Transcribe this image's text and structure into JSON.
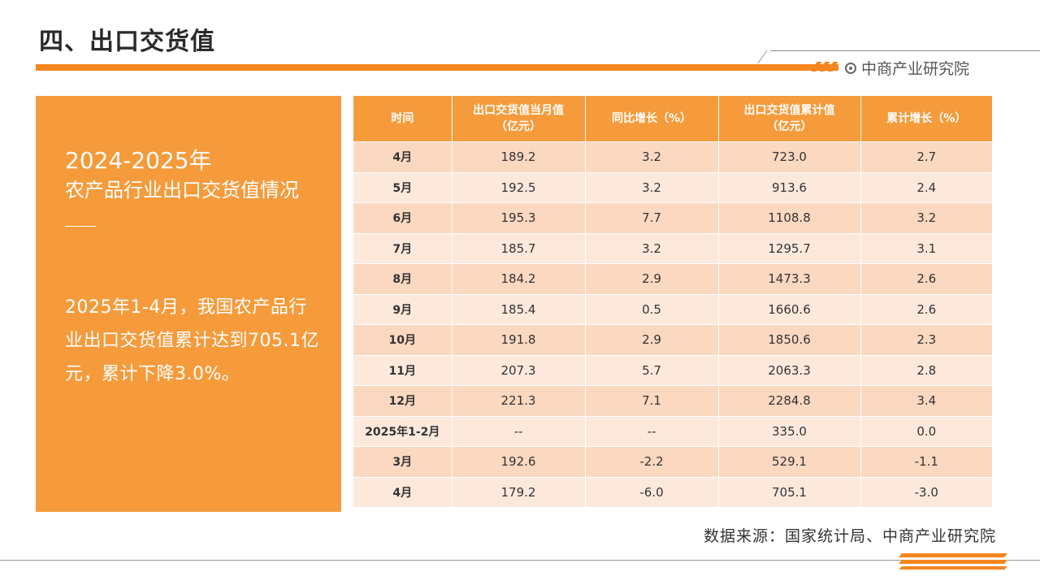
{
  "header": {
    "title": "四、出口交货值",
    "brand": "中商产业研究院"
  },
  "summary": {
    "year": "2024-2025年",
    "subtitle": "农产品行业出口交货值情况",
    "body": "2025年1-4月，我国农产品行业出口交货值累计达到705.1亿元，累计下降3.0%。"
  },
  "table": {
    "headers": [
      {
        "line1": "时间",
        "line2": ""
      },
      {
        "line1": "出口交货值当月值",
        "line2": "（亿元）"
      },
      {
        "line1": "同比增长（%）",
        "line2": ""
      },
      {
        "line1": "出口交货值累计值",
        "line2": "（亿元）"
      },
      {
        "line1": "累计增长（%）",
        "line2": ""
      }
    ],
    "rows": [
      [
        "4月",
        "189.2",
        "3.2",
        "723.0",
        "2.7"
      ],
      [
        "5月",
        "192.5",
        "3.2",
        "913.6",
        "2.4"
      ],
      [
        "6月",
        "195.3",
        "7.7",
        "1108.8",
        "3.2"
      ],
      [
        "7月",
        "185.7",
        "3.2",
        "1295.7",
        "3.1"
      ],
      [
        "8月",
        "184.2",
        "2.9",
        "1473.3",
        "2.6"
      ],
      [
        "9月",
        "185.4",
        "0.5",
        "1660.6",
        "2.6"
      ],
      [
        "10月",
        "191.8",
        "2.9",
        "1850.6",
        "2.3"
      ],
      [
        "11月",
        "207.3",
        "5.7",
        "2063.3",
        "2.8"
      ],
      [
        "12月",
        "221.3",
        "7.1",
        "2284.8",
        "3.4"
      ],
      [
        "2025年1-2月",
        "--",
        "--",
        "335.0",
        "0.0"
      ],
      [
        "3月",
        "192.6",
        "-2.2",
        "529.1",
        "-1.1"
      ],
      [
        "4月",
        "179.2",
        "-6.0",
        "705.1",
        "-3.0"
      ]
    ]
  },
  "footer": {
    "source": "数据来源：国家统计局、中商产业研究院"
  },
  "colors": {
    "accent": "#f5861f",
    "panel": "#f59b3b",
    "row_odd": "#fbd8c0",
    "row_even": "#fde9dc"
  }
}
